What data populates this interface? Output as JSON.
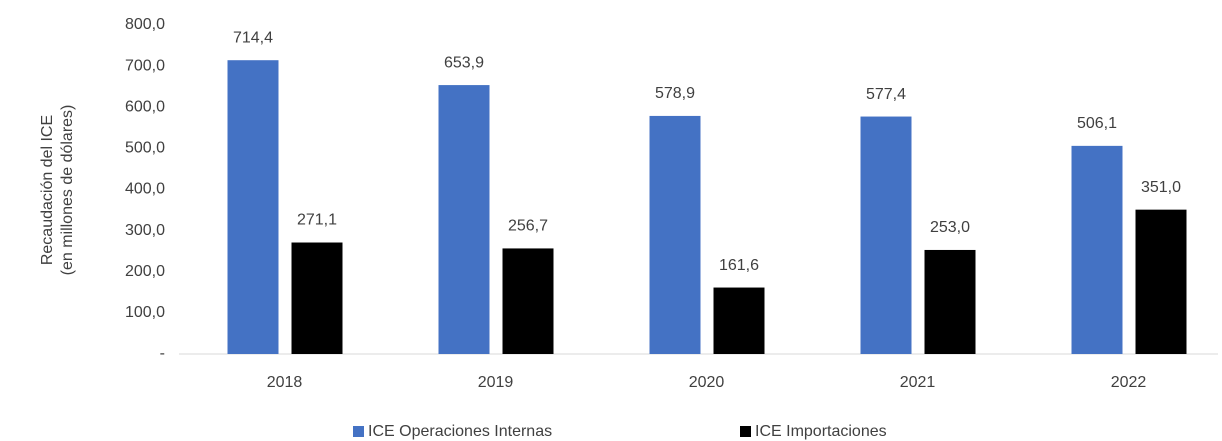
{
  "chart_data": {
    "type": "bar",
    "ylabel": [
      "Recaudación del ICE",
      "(en millones de dólares)"
    ],
    "categories": [
      "2018",
      "2019",
      "2020",
      "2021",
      "2022"
    ],
    "series": [
      {
        "name": "ICE Operaciones Internas",
        "color": "#4472c4",
        "values": [
          714.4,
          653.9,
          578.9,
          577.4,
          506.1
        ],
        "value_labels": [
          "714,4",
          "653,9",
          "578,9",
          "577,4",
          "506,1"
        ]
      },
      {
        "name": "ICE Importaciones",
        "color": "#000000",
        "values": [
          271.1,
          256.7,
          161.6,
          253.0,
          351.0
        ],
        "value_labels": [
          "271,1",
          "256,7",
          "161,6",
          "253,0",
          "351,0"
        ]
      }
    ],
    "ylim": [
      0,
      800
    ],
    "yticks": [
      {
        "value": 0,
        "label": "-"
      },
      {
        "value": 100,
        "label": "100,0"
      },
      {
        "value": 200,
        "label": "200,0"
      },
      {
        "value": 300,
        "label": "300,0"
      },
      {
        "value": 400,
        "label": "400,0"
      },
      {
        "value": 500,
        "label": "500,0"
      },
      {
        "value": 600,
        "label": "600,0"
      },
      {
        "value": 700,
        "label": "700,0"
      },
      {
        "value": 800,
        "label": "800,0"
      }
    ],
    "grid": false,
    "legend": "bottom"
  }
}
